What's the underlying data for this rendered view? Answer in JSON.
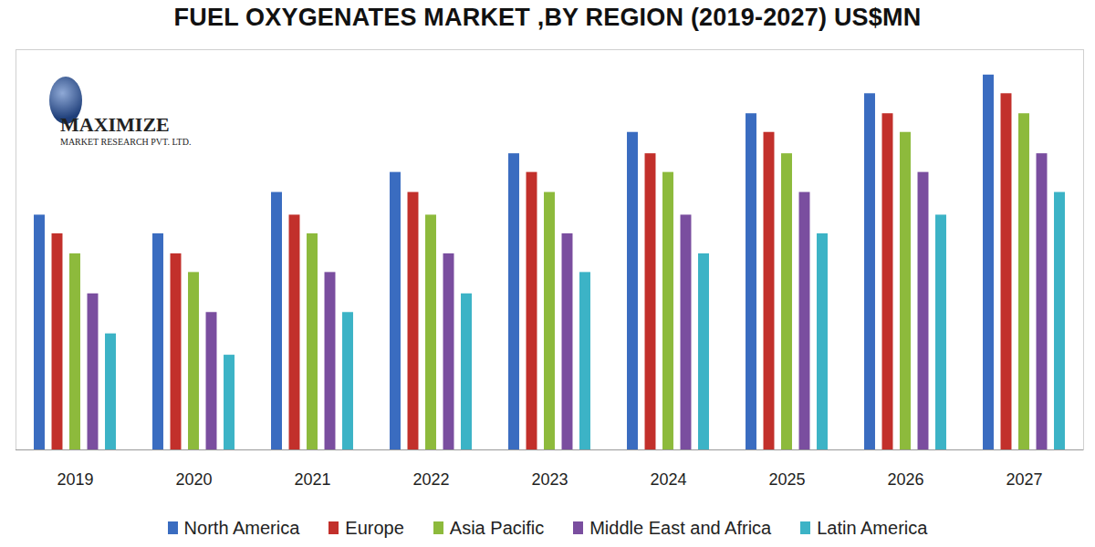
{
  "chart_data": {
    "type": "bar",
    "title": "FUEL OXYGENATES MARKET ,BY REGION (2019-2027) US$MN",
    "annotations": [
      "MAXIMIZE",
      "MARKET RESEARCH PVT. LTD."
    ],
    "categories": [
      "2019",
      "2020",
      "2021",
      "2022",
      "2023",
      "2024",
      "2025",
      "2026",
      "2027"
    ],
    "series": [
      {
        "name": "North America",
        "color": "#3a6cc0",
        "values": [
          176,
          162,
          193,
          208,
          222,
          238,
          252,
          267,
          281
        ]
      },
      {
        "name": "Europe",
        "color": "#c2302b",
        "values": [
          162,
          147,
          176,
          193,
          208,
          222,
          238,
          252,
          267
        ]
      },
      {
        "name": "Asia Pacific",
        "color": "#8dba3c",
        "values": [
          147,
          133,
          162,
          176,
          193,
          208,
          222,
          238,
          252
        ]
      },
      {
        "name": "Middle East and Africa",
        "color": "#7a4e9f",
        "values": [
          117,
          103,
          133,
          147,
          162,
          176,
          193,
          208,
          222
        ]
      },
      {
        "name": "Latin America",
        "color": "#3cb3c6",
        "values": [
          87,
          71,
          103,
          117,
          133,
          147,
          162,
          176,
          193
        ]
      }
    ],
    "ylim": [
      0,
      300
    ],
    "yticks": [],
    "tick_labels": "x",
    "grid": false,
    "legend": "bottom"
  }
}
